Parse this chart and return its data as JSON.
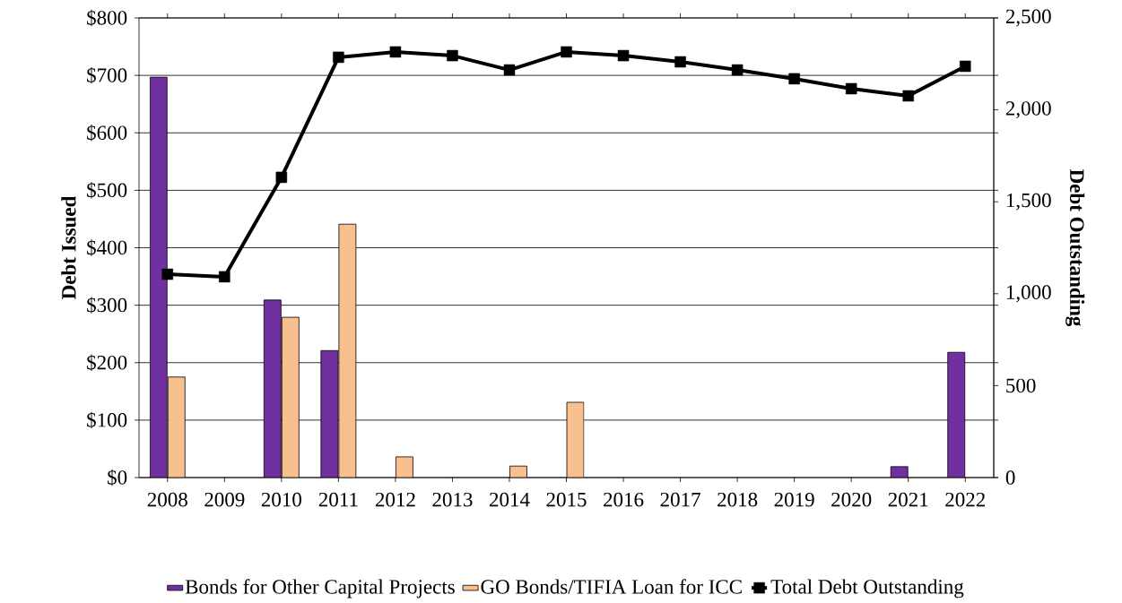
{
  "chart_data": {
    "type": "bar",
    "ylabel": "Debt Issued",
    "y2label": "Debt Outstanding",
    "categories": [
      "2008",
      "2009",
      "2010",
      "2011",
      "2012",
      "2013",
      "2014",
      "2015",
      "2016",
      "2017",
      "2018",
      "2019",
      "2020",
      "2021",
      "2022"
    ],
    "series": [
      {
        "name": "Bonds for Other Capital Projects",
        "color": "#7030a0",
        "values": [
          697,
          null,
          309,
          221,
          null,
          null,
          null,
          null,
          null,
          null,
          null,
          null,
          null,
          19,
          218
        ]
      },
      {
        "name": "GO Bonds/TIFIA Loan for ICC",
        "color": "#f9c08f",
        "values": [
          175,
          null,
          279,
          441,
          36,
          null,
          20,
          131,
          null,
          null,
          null,
          null,
          null,
          null,
          null
        ]
      },
      {
        "name": "Total Debt Outstanding",
        "color": "#000000",
        "type": "line",
        "axis": "y2",
        "values": [
          1106,
          1092,
          1633,
          2286,
          2315,
          2295,
          2217,
          2315,
          2295,
          2261,
          2217,
          2169,
          2115,
          2076,
          2237
        ]
      }
    ],
    "marker": "square",
    "ylim": [
      0,
      800
    ],
    "yticks": [
      {
        "value": 0,
        "label": "$0"
      },
      {
        "value": 100,
        "label": "$100"
      },
      {
        "value": 200,
        "label": "$200"
      },
      {
        "value": 300,
        "label": "$300"
      },
      {
        "value": 400,
        "label": "$400"
      },
      {
        "value": 500,
        "label": "$500"
      },
      {
        "value": 600,
        "label": "$600"
      },
      {
        "value": 700,
        "label": "$700"
      },
      {
        "value": 800,
        "label": "$800"
      }
    ],
    "y2lim": [
      0,
      2500
    ],
    "y2ticks": [
      0,
      {
        "value": 500,
        "label": "500"
      },
      {
        "value": 1000,
        "label": "1,000"
      },
      {
        "value": 1500,
        "label": "1,500"
      },
      {
        "value": 2000,
        "label": "2,000"
      },
      {
        "value": 2500,
        "label": "2,500"
      }
    ],
    "grid": "y",
    "legend": "bottom"
  }
}
